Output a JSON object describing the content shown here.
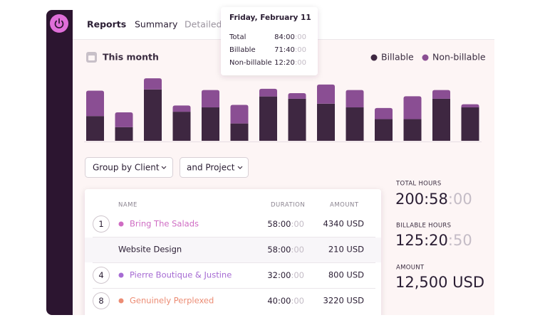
{
  "nav": {
    "tabs": [
      "Reports",
      "Summary",
      "Detailed"
    ]
  },
  "chart": {
    "type": "bar",
    "title": "This month",
    "stacked": true,
    "series": [
      {
        "name": "Billable",
        "color": "#3e2741",
        "values": [
          40,
          22,
          83,
          47,
          54,
          28,
          71.67,
          68,
          60,
          54,
          35,
          35,
          68,
          54
        ]
      },
      {
        "name": "Non-billable",
        "color": "#8a4e93",
        "values": [
          41,
          24,
          18,
          10,
          28,
          30,
          12.33,
          9,
          31,
          28,
          18,
          37,
          14,
          5
        ]
      }
    ]
  },
  "tooltip": {
    "date": "Friday, February 11",
    "rows": [
      {
        "label": "Total",
        "time": "84:00",
        "seconds": ":00"
      },
      {
        "label": "Billable",
        "time": "71:40",
        "seconds": ":00"
      },
      {
        "label": "Non-billable",
        "time": "12:20",
        "seconds": ":00"
      }
    ]
  },
  "filters": [
    "Group by Client",
    "and Project"
  ],
  "table": {
    "headers": [
      "NAME",
      "DURATION",
      "AMOUNT"
    ],
    "rows": [
      {
        "index": 1,
        "name": "Bring The Salads",
        "color": "#cf6cc3",
        "duration": "58:00",
        "seconds": ":00",
        "amount": "4340 USD"
      },
      {
        "name": "Website Design",
        "duration": "58:00",
        "seconds": ":00",
        "amount": "210 USD"
      },
      {
        "index": 4,
        "name": "Pierre Boutique & Justine",
        "color": "#a66bd3",
        "duration": "32:00",
        "seconds": ":00",
        "amount": "800 USD"
      },
      {
        "index": 8,
        "name": "Genuinely Perplexed",
        "color": "#ec8c74",
        "duration": "40:00",
        "seconds": ":00",
        "amount": "3220 USD"
      }
    ]
  },
  "summary": [
    {
      "label": "TOTAL HOURS",
      "value": "200:58",
      "seconds": ":00"
    },
    {
      "label": "BILLABLE HOURS",
      "value": "125:20",
      "seconds": ":50"
    },
    {
      "label": "AMOUNT",
      "value": "12,500 USD"
    }
  ]
}
